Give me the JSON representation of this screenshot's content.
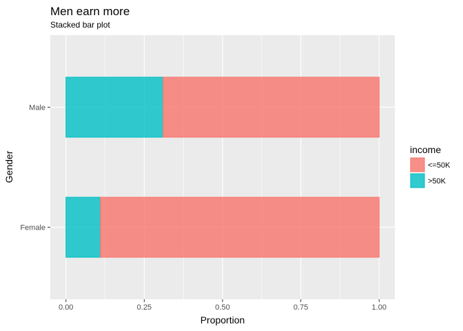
{
  "chart_data": {
    "type": "bar",
    "orientation": "horizontal",
    "stacked": true,
    "title": "Men earn more",
    "subtitle": "Stacked bar plot",
    "xlabel": "Proportion",
    "ylabel": "Gender",
    "categories": [
      "Female",
      "Male"
    ],
    "x_ticks": [
      "0.00",
      "0.25",
      "0.50",
      "0.75",
      "1.00"
    ],
    "x_tick_values": [
      0,
      0.25,
      0.5,
      0.75,
      1.0
    ],
    "xlim": [
      -0.05,
      1.05
    ],
    "grid": true,
    "legend": {
      "title": "income",
      "placement": "right"
    },
    "series": [
      {
        "name": ">50K",
        "values": [
          0.11,
          0.31
        ],
        "color": "#00BFC4"
      },
      {
        "name": "<=50K",
        "values": [
          0.89,
          0.69
        ],
        "color": "#F8766D"
      }
    ],
    "legend_order": [
      "<=50K",
      ">50K"
    ],
    "panel_background": "#EBEBEB"
  }
}
